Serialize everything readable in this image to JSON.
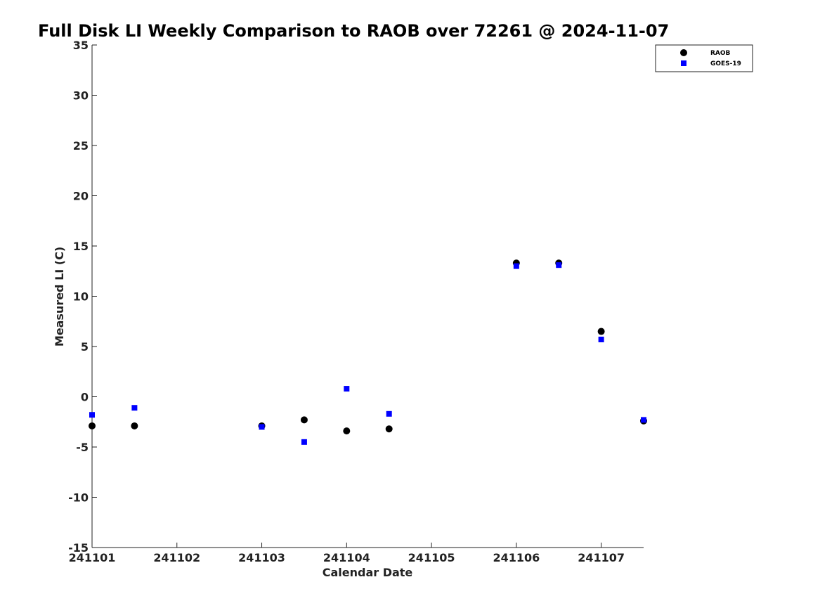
{
  "chart_data": {
    "type": "scatter",
    "title": "Full Disk LI Weekly Comparison to RAOB over 72261 @ 2024-11-07",
    "xlabel": "Calendar Date",
    "ylabel": "Measured LI (C)",
    "xlim": [
      241101,
      241107.5
    ],
    "ylim": [
      -15,
      35
    ],
    "x_ticks": [
      241101,
      241102,
      241103,
      241104,
      241105,
      241106,
      241107
    ],
    "x_tick_labels": [
      "241101",
      "241102",
      "241103",
      "241104",
      "241105",
      "241106",
      "241107"
    ],
    "y_ticks": [
      -15,
      -10,
      -5,
      0,
      5,
      10,
      15,
      20,
      25,
      30,
      35
    ],
    "y_tick_labels": [
      "-15",
      "-10",
      "-5",
      "0",
      "5",
      "10",
      "15",
      "20",
      "25",
      "30",
      "35"
    ],
    "grid": false,
    "legend_position": "top-right",
    "series": [
      {
        "name": "RAOB",
        "marker": "circle",
        "color": "#000000",
        "x": [
          241101,
          241101.5,
          241103,
          241103.5,
          241104,
          241104.5,
          241106,
          241106.5,
          241107,
          241107.5
        ],
        "y": [
          -2.9,
          -2.9,
          -2.9,
          -2.3,
          -3.4,
          -3.2,
          13.3,
          13.3,
          6.5,
          -2.4
        ]
      },
      {
        "name": "GOES-19",
        "marker": "square",
        "color": "#0000ff",
        "x": [
          241101,
          241101.5,
          241103,
          241103.5,
          241104,
          241104.5,
          241106,
          241106.5,
          241107,
          241107.5
        ],
        "y": [
          -1.8,
          -1.1,
          -3.0,
          -4.5,
          0.8,
          -1.7,
          13.0,
          13.1,
          5.7,
          -2.3
        ]
      }
    ]
  }
}
